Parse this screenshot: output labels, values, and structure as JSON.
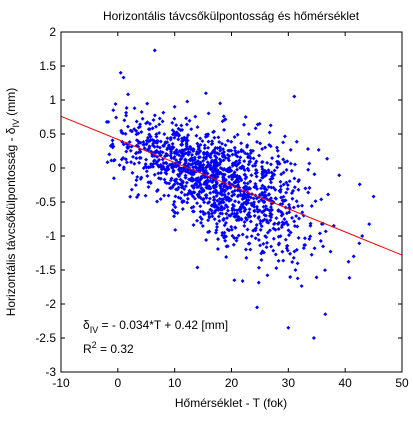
{
  "chart_data": {
    "type": "scatter",
    "title": "Horizontális távcsőkülpontosság és hőmérséklet",
    "xlabel": "Hőmérséklet - T (fok)",
    "ylabel_main": "Horizontális távcsőkülpontosság - δ",
    "ylabel_sub": "IV",
    "ylabel_unit": " (mm)",
    "xlim": [
      -10,
      50
    ],
    "ylim": [
      -3,
      2
    ],
    "x_ticks": [
      -10,
      0,
      10,
      20,
      30,
      40,
      50
    ],
    "x_tick_labels": [
      "-10",
      "0",
      "10",
      "20",
      "30",
      "40",
      "50"
    ],
    "y_ticks": [
      -3,
      -2.5,
      -2,
      -1.5,
      -1,
      -0.5,
      0,
      0.5,
      1,
      1.5,
      2
    ],
    "y_tick_labels": [
      "-3",
      "-2.5",
      "-2",
      "-1.5",
      "-1",
      "-0.5",
      "0",
      "0.5",
      "1",
      "1.5",
      "2"
    ],
    "grid": false,
    "point_color": "#0000ff",
    "line_color": "#ff0000",
    "regression": {
      "slope": -0.034,
      "intercept": 0.42,
      "x_range": [
        -10,
        50
      ]
    },
    "annotation": {
      "eq_symbol": "δ",
      "eq_sub": "IV",
      "eq_rest": " = - 0.034*T + 0.42 [mm]",
      "r2_label": "R",
      "r2_sup": "2",
      "r2_rest": " = 0.32"
    },
    "scatter_params": {
      "count": 1400,
      "x_mean": 17,
      "x_sd": 8.5,
      "x_min": -2,
      "x_max": 45,
      "noise_sd": 0.42,
      "seed": 12345
    },
    "extra_points": [
      [
        6.5,
        1.73
      ],
      [
        0.5,
        1.4
      ],
      [
        1.0,
        1.33
      ],
      [
        -0.8,
        0.85
      ],
      [
        -1.5,
        0.2
      ],
      [
        45.0,
        -0.42
      ],
      [
        43.0,
        -1.0
      ],
      [
        41.5,
        -1.3
      ],
      [
        36.5,
        -2.15
      ],
      [
        34.5,
        -2.5
      ],
      [
        30.0,
        -2.35
      ],
      [
        24.5,
        -2.05
      ],
      [
        20.5,
        -1.65
      ],
      [
        18.0,
        0.95
      ],
      [
        15.5,
        1.1
      ],
      [
        22.5,
        0.75
      ],
      [
        28.0,
        0.3
      ],
      [
        33.0,
        -0.3
      ],
      [
        38.0,
        -0.85
      ],
      [
        10.0,
        0.9
      ]
    ]
  }
}
